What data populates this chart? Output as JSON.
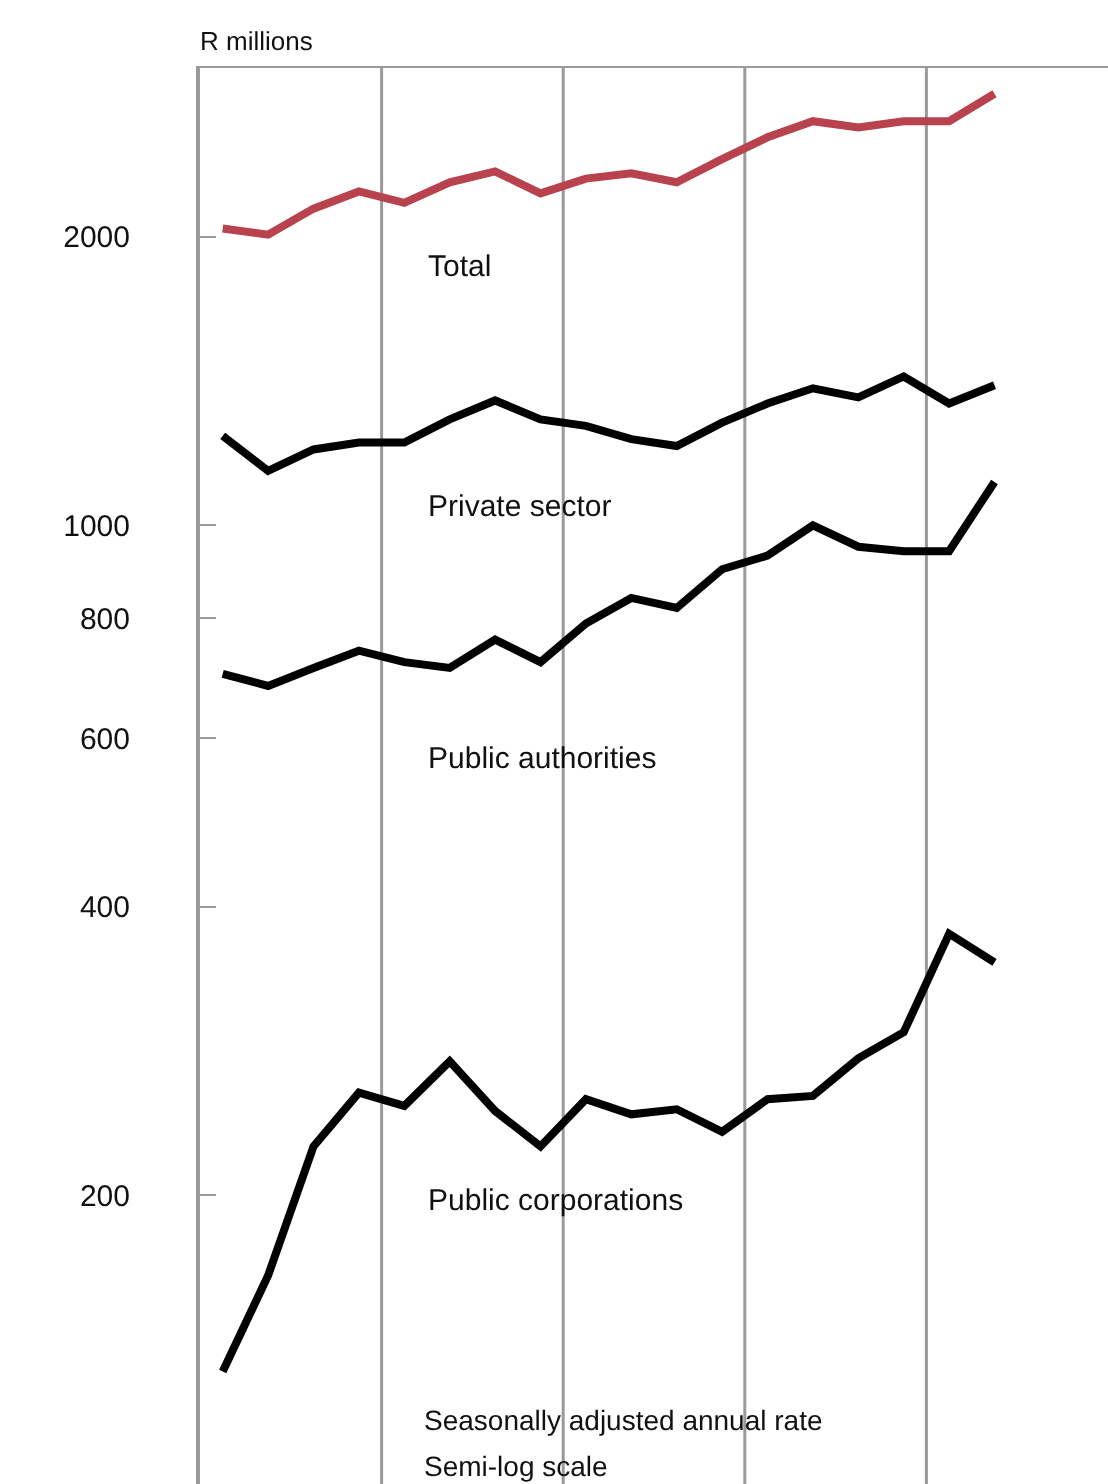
{
  "chart_data": {
    "type": "line",
    "ylabel": "R millions",
    "log": "y",
    "legend": false,
    "marker": "none",
    "line_style": "solid",
    "categories": [
      null,
      null,
      null,
      null,
      null,
      null,
      null,
      null,
      null,
      null,
      null,
      null,
      null,
      null,
      null,
      null,
      null,
      null
    ],
    "ylim": [
      100,
      3000
    ],
    "yticks": [
      200,
      400,
      600,
      800,
      1000,
      2000
    ],
    "series": [
      {
        "name": "Total",
        "color": "#b8424e",
        "values": [
          2040,
          2010,
          2140,
          2230,
          2170,
          2280,
          2340,
          2220,
          2300,
          2330,
          2280,
          2410,
          2540,
          2640,
          2600,
          2640,
          2640,
          2820
        ]
      },
      {
        "name": "Private sector",
        "color": "#000000",
        "values": [
          1240,
          1140,
          1200,
          1220,
          1220,
          1290,
          1350,
          1290,
          1270,
          1230,
          1210,
          1280,
          1340,
          1390,
          1360,
          1430,
          1340,
          1400
        ]
      },
      {
        "name": "Public authorities",
        "color": "#000000",
        "values": [
          700,
          680,
          710,
          740,
          720,
          710,
          760,
          720,
          790,
          840,
          820,
          900,
          930,
          1000,
          950,
          940,
          940,
          1110
        ]
      },
      {
        "name": "Public corporations",
        "color": "#000000",
        "values": [
          131,
          165,
          225,
          256,
          248,
          276,
          245,
          225,
          252,
          243,
          246,
          233,
          252,
          254,
          278,
          296,
          375,
          350
        ]
      }
    ],
    "annotations": [
      "Seasonally adjusted annual rate",
      "Semi-log scale"
    ]
  }
}
